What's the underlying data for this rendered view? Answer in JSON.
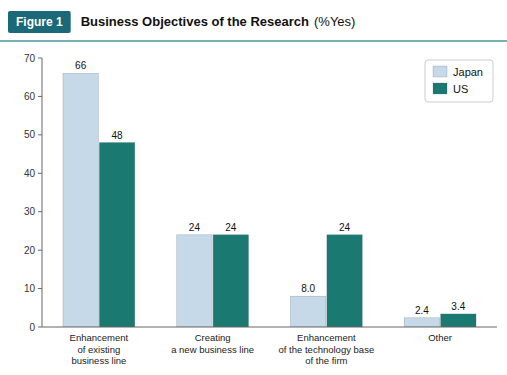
{
  "chart_data": {
    "type": "bar",
    "title": "Business Objectives of the Research",
    "subtitle": "(%Yes)",
    "annotations": [
      "Figure 1"
    ],
    "categories": [
      "Enhancement\nof existing\nbusiness line",
      "Creating\na new business line",
      "Enhancement\nof the technology base\nof the firm",
      "Other"
    ],
    "series": [
      {
        "name": "Japan",
        "color": "#c5d9e8",
        "values": [
          66,
          24,
          8.0,
          2.4
        ],
        "value_labels": [
          "66",
          "24",
          "8.0",
          "2.4"
        ]
      },
      {
        "name": "US",
        "color": "#1a7a72",
        "values": [
          48,
          24,
          24,
          3.4
        ]
      }
    ],
    "ylim": [
      0,
      70
    ],
    "yticks": [
      0,
      10,
      20,
      30,
      40,
      50,
      60,
      70
    ],
    "grid": false,
    "legend": "upper right",
    "data_labels": true
  }
}
